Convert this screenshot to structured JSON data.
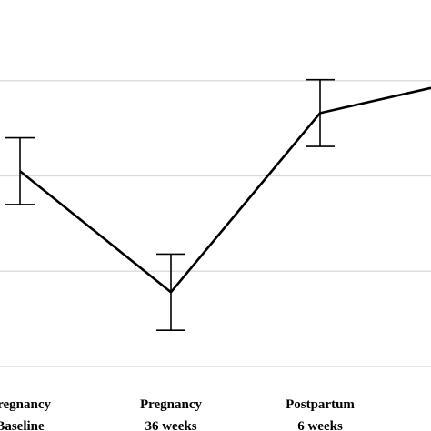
{
  "chart_data": {
    "type": "line",
    "title": "",
    "xlabel": "",
    "ylabel": "",
    "categories": [
      [
        "Pregnancy",
        "Baseline"
      ],
      [
        "Pregnancy",
        "36 weeks"
      ],
      [
        "Postpartum",
        "6 weeks"
      ],
      [
        "",
        ""
      ]
    ],
    "ylim": [
      0,
      4
    ],
    "grid": true,
    "gridlines": [
      0,
      1,
      2,
      3,
      4
    ],
    "series": [
      {
        "values": [
          2.05,
          0.78,
          2.66,
          2.98
        ],
        "error": [
          0.35,
          0.4,
          0.35,
          0
        ],
        "color": "#000000"
      }
    ]
  }
}
